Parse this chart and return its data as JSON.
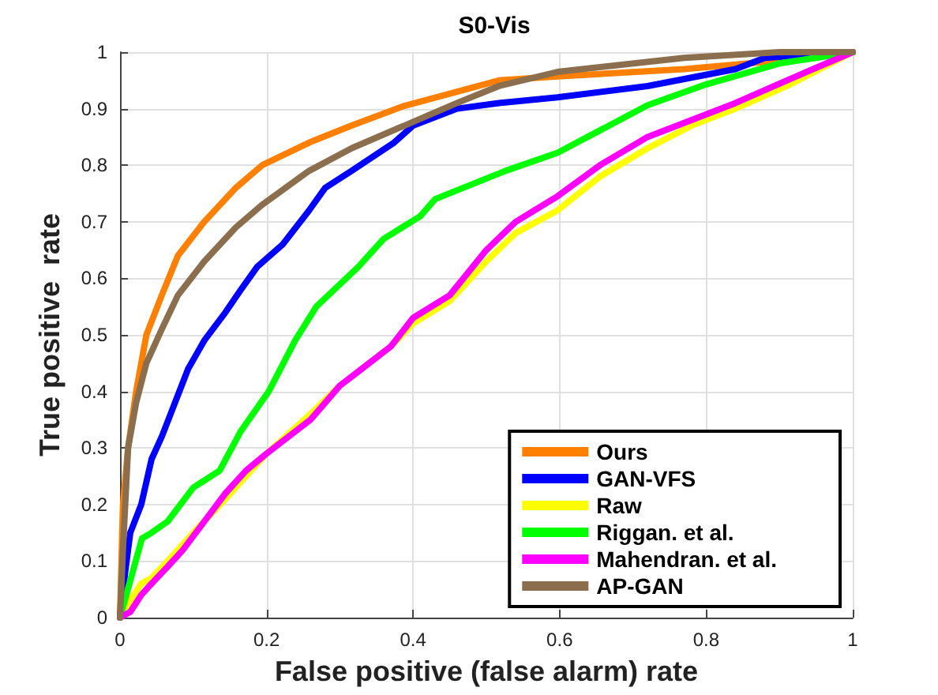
{
  "chart_data": {
    "type": "line",
    "title": "S0-Vis",
    "xlabel": "False positive (false alarm) rate",
    "ylabel": "True positive  rate",
    "xlim": [
      0,
      1
    ],
    "xticks": [
      0,
      0.2,
      0.4,
      0.6,
      0.8,
      1
    ],
    "ylim": [
      0,
      1
    ],
    "yticks": [
      0,
      0.1,
      0.2,
      0.3,
      0.4,
      0.5,
      0.6,
      0.7,
      0.8,
      0.9,
      1
    ],
    "grid": true,
    "legend": "bottom right",
    "marker": "none",
    "line_style": "solid",
    "series": [
      {
        "name": "Ours",
        "color": "#ff8000",
        "x": [
          0,
          0.004,
          0.011,
          0.022,
          0.036,
          0.057,
          0.079,
          0.115,
          0.158,
          0.194,
          0.258,
          0.316,
          0.388,
          0.46,
          0.517,
          0.597,
          0.77,
          0.9,
          1
        ],
        "values": [
          0,
          0.2,
          0.3,
          0.4,
          0.5,
          0.57,
          0.64,
          0.7,
          0.76,
          0.8,
          0.84,
          0.87,
          0.905,
          0.93,
          0.95,
          0.957,
          0.97,
          0.985,
          1
        ]
      },
      {
        "name": "GAN-VFS",
        "color": "#0000ff",
        "x": [
          0,
          0.007,
          0.014,
          0.029,
          0.043,
          0.057,
          0.072,
          0.093,
          0.115,
          0.144,
          0.165,
          0.187,
          0.222,
          0.258,
          0.28,
          0.316,
          0.374,
          0.4,
          0.46,
          0.517,
          0.597,
          0.72,
          0.84,
          0.88,
          1
        ],
        "values": [
          0,
          0.08,
          0.15,
          0.2,
          0.28,
          0.32,
          0.37,
          0.44,
          0.49,
          0.54,
          0.58,
          0.62,
          0.66,
          0.72,
          0.76,
          0.79,
          0.84,
          0.87,
          0.9,
          0.91,
          0.92,
          0.94,
          0.97,
          0.99,
          1
        ]
      },
      {
        "name": "Raw",
        "color": "#ffff00",
        "x": [
          0,
          0.014,
          0.029,
          0.043,
          0.065,
          0.1,
          0.144,
          0.2,
          0.26,
          0.3,
          0.37,
          0.4,
          0.45,
          0.5,
          0.54,
          0.597,
          0.655,
          0.72,
          0.78,
          0.84,
          0.91,
          1
        ],
        "values": [
          0,
          0.03,
          0.06,
          0.07,
          0.1,
          0.15,
          0.21,
          0.29,
          0.36,
          0.41,
          0.48,
          0.52,
          0.56,
          0.63,
          0.68,
          0.72,
          0.78,
          0.83,
          0.87,
          0.9,
          0.94,
          1
        ]
      },
      {
        "name": "Riggan. et al.",
        "color": "#00ff00",
        "x": [
          0,
          0.03,
          0.043,
          0.065,
          0.1,
          0.136,
          0.165,
          0.203,
          0.239,
          0.268,
          0.325,
          0.36,
          0.41,
          0.43,
          0.526,
          0.597,
          0.72,
          0.8,
          0.9,
          1
        ],
        "values": [
          0,
          0.14,
          0.15,
          0.17,
          0.23,
          0.26,
          0.33,
          0.4,
          0.49,
          0.55,
          0.62,
          0.67,
          0.71,
          0.74,
          0.79,
          0.822,
          0.906,
          0.943,
          0.98,
          1
        ]
      },
      {
        "name": "Mahendran. et al.",
        "color": "#ff00ff",
        "x": [
          0,
          0.014,
          0.029,
          0.043,
          0.065,
          0.086,
          0.115,
          0.144,
          0.172,
          0.2,
          0.23,
          0.26,
          0.3,
          0.33,
          0.37,
          0.4,
          0.45,
          0.5,
          0.54,
          0.597,
          0.655,
          0.72,
          0.78,
          0.84,
          0.91,
          1
        ],
        "values": [
          0,
          0.01,
          0.04,
          0.06,
          0.09,
          0.12,
          0.17,
          0.22,
          0.26,
          0.29,
          0.32,
          0.35,
          0.41,
          0.44,
          0.48,
          0.53,
          0.57,
          0.65,
          0.7,
          0.745,
          0.8,
          0.85,
          0.88,
          0.91,
          0.95,
          1
        ]
      },
      {
        "name": "AP-GAN",
        "color": "#8b6e4e",
        "x": [
          0,
          0.004,
          0.011,
          0.022,
          0.036,
          0.057,
          0.079,
          0.115,
          0.158,
          0.194,
          0.258,
          0.316,
          0.388,
          0.46,
          0.517,
          0.597,
          0.77,
          0.9,
          1
        ],
        "values": [
          0,
          0.12,
          0.3,
          0.38,
          0.45,
          0.51,
          0.57,
          0.63,
          0.69,
          0.73,
          0.79,
          0.83,
          0.87,
          0.91,
          0.94,
          0.965,
          0.99,
          1,
          1
        ]
      }
    ]
  }
}
